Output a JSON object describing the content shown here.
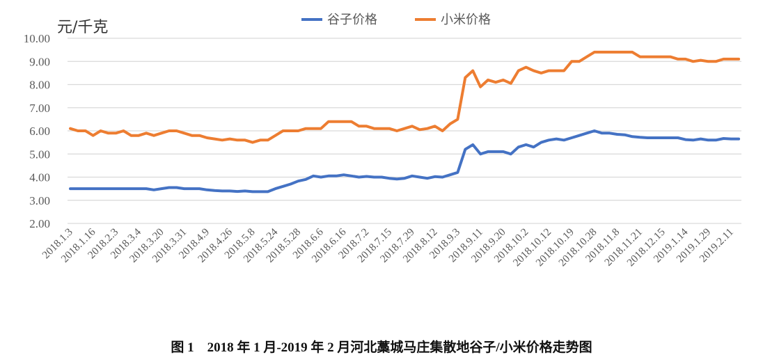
{
  "chart_data": {
    "type": "line",
    "title": "",
    "ylabel": "元/千克",
    "xlabel": "",
    "ylim": [
      2,
      10
    ],
    "yticks": [
      "2.00",
      "3.00",
      "4.00",
      "5.00",
      "6.00",
      "7.00",
      "8.00",
      "9.00",
      "10.00"
    ],
    "grid": true,
    "legend_placement": "top",
    "categories": [
      "2018.1.3",
      "",
      "",
      "2018.1.16",
      "",
      "",
      "2018.2.3",
      "",
      "",
      "2018.3.4",
      "",
      "",
      "2018.3.20",
      "",
      "",
      "2018.3.31",
      "",
      "",
      "2018.4.9",
      "",
      "",
      "2018.4.26",
      "",
      "",
      "2018.5.8",
      "",
      "",
      "2018.5.24",
      "",
      "",
      "2018.5.28",
      "",
      "",
      "2018.6.6",
      "",
      "",
      "2018.6.16",
      "",
      "",
      "2018.7.2",
      "",
      "",
      "2018.7.15",
      "",
      "",
      "2018.7.29",
      "",
      "",
      "2018.8.12",
      "",
      "",
      "2018.9.3",
      "",
      "",
      "2018.9.11",
      "",
      "",
      "2018.9.20",
      "",
      "",
      "2018.10.2",
      "",
      "",
      "2018.10.12",
      "",
      "",
      "2018.10.19",
      "",
      "",
      "2018.10.28",
      "",
      "",
      "2018.11.8",
      "",
      "",
      "2018.11.21",
      "",
      "",
      "2018.12.15",
      "",
      "",
      "2019.1.14",
      "",
      "",
      "2019.1.29",
      "",
      "",
      "2019.2.11",
      ""
    ],
    "series": [
      {
        "name": "谷子价格",
        "color": "#4472C4",
        "values": [
          3.5,
          3.5,
          3.5,
          3.5,
          3.5,
          3.5,
          3.5,
          3.5,
          3.5,
          3.5,
          3.5,
          3.45,
          3.5,
          3.55,
          3.55,
          3.5,
          3.5,
          3.5,
          3.45,
          3.42,
          3.4,
          3.4,
          3.38,
          3.4,
          3.37,
          3.37,
          3.37,
          3.5,
          3.6,
          3.7,
          3.83,
          3.9,
          4.05,
          4.0,
          4.05,
          4.05,
          4.1,
          4.05,
          4.0,
          4.03,
          4.0,
          4.0,
          3.95,
          3.92,
          3.95,
          4.05,
          4.0,
          3.95,
          4.02,
          4.0,
          4.1,
          4.2,
          5.2,
          5.4,
          5.0,
          5.1,
          5.1,
          5.1,
          5.0,
          5.3,
          5.4,
          5.3,
          5.5,
          5.6,
          5.65,
          5.6,
          5.7,
          5.8,
          5.9,
          6.0,
          5.9,
          5.9,
          5.85,
          5.83,
          5.75,
          5.72,
          5.7,
          5.7,
          5.7,
          5.7,
          5.7,
          5.62,
          5.6,
          5.65,
          5.6,
          5.6,
          5.67,
          5.65,
          5.65
        ]
      },
      {
        "name": "小米价格",
        "color": "#ED7D31",
        "values": [
          6.1,
          6.0,
          6.0,
          5.8,
          6.0,
          5.9,
          5.9,
          6.0,
          5.8,
          5.8,
          5.9,
          5.8,
          5.9,
          6.0,
          6.0,
          5.9,
          5.8,
          5.8,
          5.7,
          5.65,
          5.6,
          5.65,
          5.6,
          5.6,
          5.5,
          5.6,
          5.6,
          5.8,
          6.0,
          6.0,
          6.0,
          6.1,
          6.1,
          6.1,
          6.4,
          6.4,
          6.4,
          6.4,
          6.2,
          6.2,
          6.1,
          6.1,
          6.1,
          6.0,
          6.1,
          6.2,
          6.05,
          6.1,
          6.2,
          6.0,
          6.3,
          6.5,
          8.3,
          8.6,
          7.9,
          8.2,
          8.1,
          8.2,
          8.05,
          8.6,
          8.75,
          8.6,
          8.5,
          8.6,
          8.6,
          8.6,
          9.0,
          9.0,
          9.2,
          9.4,
          9.4,
          9.4,
          9.4,
          9.4,
          9.4,
          9.2,
          9.2,
          9.2,
          9.2,
          9.2,
          9.1,
          9.1,
          9.0,
          9.05,
          9.0,
          9.0,
          9.1,
          9.1,
          9.1
        ]
      }
    ]
  },
  "caption": "图 1　2018 年 1 月-2019 年 2 月河北藁城马庄集散地谷子/小米价格走势图"
}
